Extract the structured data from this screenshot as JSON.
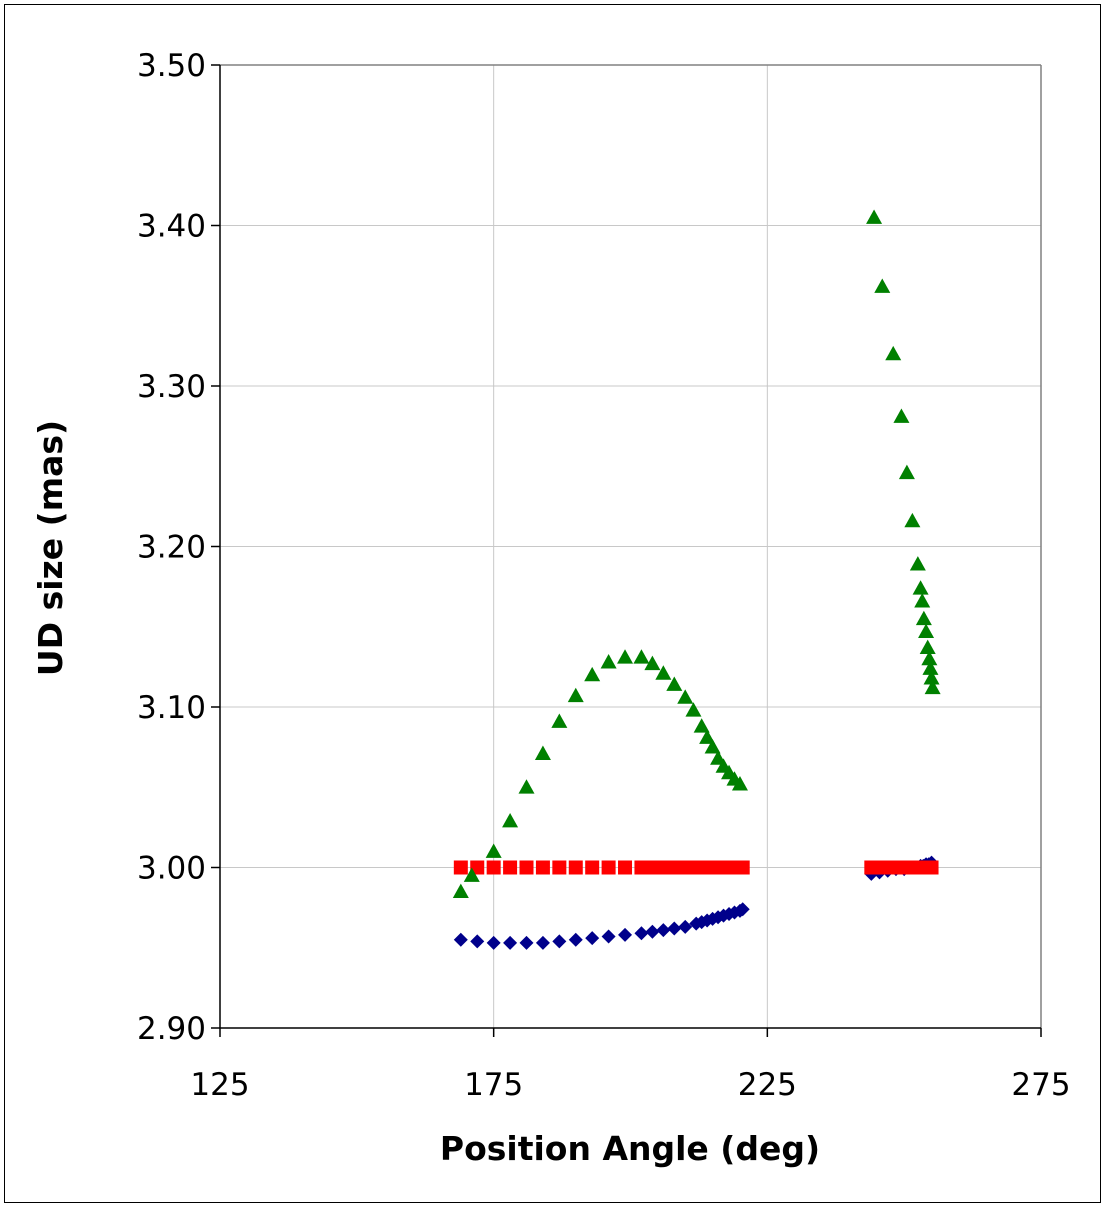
{
  "chart_data": {
    "type": "scatter",
    "title": "",
    "xlabel": "Position Angle (deg)",
    "ylabel": "UD size (mas)",
    "xlim": [
      125,
      275
    ],
    "ylim": [
      2.9,
      3.5
    ],
    "xticks": [
      "125",
      "175",
      "225",
      "275"
    ],
    "yticks": [
      "2.90",
      "3.00",
      "3.10",
      "3.20",
      "3.30",
      "3.40",
      "3.50"
    ],
    "grid": true,
    "legend": "none",
    "series": [
      {
        "marker": "diamond",
        "color": "#00008B",
        "x": [
          169,
          172,
          175,
          178,
          181,
          184,
          187,
          190,
          193,
          196,
          199,
          202,
          204,
          206,
          208,
          210,
          212,
          213,
          214,
          215,
          216,
          217,
          218,
          219,
          220,
          220.5,
          244,
          245.5,
          247,
          248.5,
          250,
          251,
          252,
          253,
          253.5,
          254,
          254.5,
          255
        ],
        "y": [
          2.955,
          2.954,
          2.953,
          2.953,
          2.953,
          2.953,
          2.954,
          2.955,
          2.956,
          2.957,
          2.958,
          2.959,
          2.96,
          2.961,
          2.962,
          2.963,
          2.965,
          2.966,
          2.967,
          2.968,
          2.969,
          2.97,
          2.971,
          2.972,
          2.973,
          2.974,
          2.996,
          2.997,
          2.998,
          2.999,
          2.999,
          3.0,
          3.0,
          3.001,
          3.001,
          3.002,
          3.002,
          3.003
        ]
      },
      {
        "marker": "square",
        "color": "#FF0000",
        "x": [
          169,
          172,
          175,
          178,
          181,
          184,
          187,
          190,
          193,
          196,
          199,
          202,
          204,
          206,
          208,
          210,
          212,
          213,
          214,
          215,
          216,
          217,
          218,
          219,
          220,
          220.5,
          244,
          245.5,
          247,
          248.5,
          250,
          251,
          252,
          253,
          253.5,
          254,
          254.5,
          255
        ],
        "y": [
          3.0,
          3.0,
          3.0,
          3.0,
          3.0,
          3.0,
          3.0,
          3.0,
          3.0,
          3.0,
          3.0,
          3.0,
          3.0,
          3.0,
          3.0,
          3.0,
          3.0,
          3.0,
          3.0,
          3.0,
          3.0,
          3.0,
          3.0,
          3.0,
          3.0,
          3.0,
          3.0,
          3.0,
          3.0,
          3.0,
          3.0,
          3.0,
          3.0,
          3.0,
          3.0,
          3.0,
          3.0,
          3.0
        ]
      },
      {
        "marker": "triangle",
        "color": "#008000",
        "x": [
          169,
          171,
          175,
          178,
          181,
          184,
          187,
          190,
          193,
          196,
          199,
          202,
          204,
          206,
          208,
          210,
          211.5,
          213,
          214,
          215,
          216,
          217,
          218,
          219,
          220,
          244.5,
          246,
          248,
          249.5,
          250.5,
          251.5,
          252.5,
          253,
          253.3,
          253.6,
          254,
          254.3,
          254.6,
          254.8,
          255,
          255.2
        ],
        "y": [
          2.985,
          2.995,
          3.01,
          3.029,
          3.05,
          3.071,
          3.091,
          3.107,
          3.12,
          3.128,
          3.131,
          3.131,
          3.127,
          3.121,
          3.114,
          3.106,
          3.098,
          3.088,
          3.081,
          3.075,
          3.068,
          3.063,
          3.059,
          3.055,
          3.052,
          3.405,
          3.362,
          3.32,
          3.281,
          3.246,
          3.216,
          3.189,
          3.174,
          3.166,
          3.155,
          3.147,
          3.137,
          3.13,
          3.124,
          3.118,
          3.112
        ]
      }
    ]
  }
}
